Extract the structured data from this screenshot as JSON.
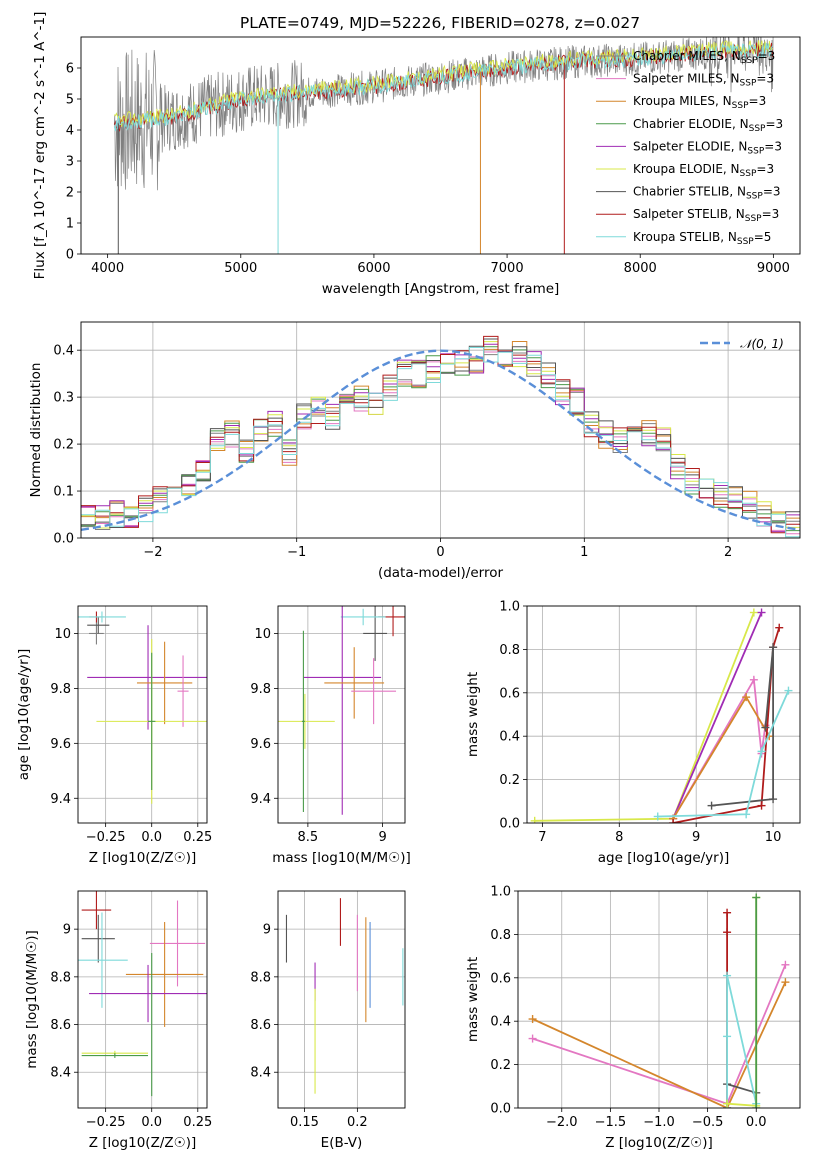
{
  "title": "PLATE=0749, MJD=52226, FIBERID=0278, z=0.027",
  "colors": {
    "chabrier_miles": "#808080",
    "salpeter_miles": "#e377c2",
    "kroupa_miles": "#d4862c",
    "chabrier_elodie": "#4a9a4a",
    "salpeter_elodie": "#a02cb4",
    "kroupa_elodie": "#d8e84a",
    "chabrier_stelib": "#555555",
    "salpeter_stelib": "#b01c1c",
    "kroupa_stelib": "#7edada",
    "normal": "#5a8fd8",
    "grid": "#b0b0b0"
  },
  "chart_data": [
    {
      "type": "line",
      "id": "spectrum",
      "xlabel": "wavelength [Angstrom, rest frame]",
      "ylabel": "Flux [f_λ 10^-17 erg cm^-2 s^-1 A^-1]",
      "xlim": [
        3800,
        9200
      ],
      "ylim": [
        0,
        7
      ],
      "xticks": [
        4000,
        5000,
        6000,
        7000,
        8000,
        9000
      ],
      "yticks": [
        0,
        1,
        2,
        3,
        4,
        5,
        6
      ],
      "grid": false,
      "legend_position": "top-right",
      "legend": [
        {
          "name": "Chabrier MILES",
          "suffix": "3",
          "color_key": "chabrier_miles"
        },
        {
          "name": "Salpeter MILES",
          "suffix": "3",
          "color_key": "salpeter_miles"
        },
        {
          "name": "Kroupa MILES",
          "suffix": "3",
          "color_key": "kroupa_miles"
        },
        {
          "name": "Chabrier ELODIE",
          "suffix": "3",
          "color_key": "chabrier_elodie"
        },
        {
          "name": "Salpeter ELODIE",
          "suffix": "3",
          "color_key": "salpeter_elodie"
        },
        {
          "name": "Kroupa ELODIE",
          "suffix": "3",
          "color_key": "kroupa_elodie"
        },
        {
          "name": "Chabrier STELIB",
          "suffix": "3",
          "color_key": "chabrier_stelib"
        },
        {
          "name": "Salpeter STELIB",
          "suffix": "3",
          "color_key": "salpeter_stelib"
        },
        {
          "name": "Kroupa STELIB",
          "suffix": "5",
          "color_key": "kroupa_stelib"
        }
      ],
      "data_range": [
        4050,
        9000
      ],
      "continuum": [
        [
          4050,
          4.2
        ],
        [
          4500,
          4.4
        ],
        [
          5000,
          5.0
        ],
        [
          5500,
          5.2
        ],
        [
          6000,
          5.4
        ],
        [
          6500,
          5.7
        ],
        [
          7000,
          6.0
        ],
        [
          7500,
          6.2
        ],
        [
          8000,
          6.3
        ],
        [
          8500,
          6.5
        ],
        [
          9000,
          6.6
        ]
      ]
    },
    {
      "type": "step",
      "id": "residuals",
      "xlabel": "(data-model)/error",
      "ylabel": "Normed distribution",
      "xlim": [
        -2.5,
        2.5
      ],
      "ylim": [
        0,
        0.46
      ],
      "xticks": [
        -2,
        -1,
        0,
        1,
        2
      ],
      "yticks": [
        0.0,
        0.1,
        0.2,
        0.3,
        0.4
      ],
      "grid": true,
      "legend_position": "top-right",
      "legend": [
        "N(0,1)"
      ],
      "bin_width": 0.1,
      "bin_start": -2.5,
      "base_hist": [
        0.04,
        0.04,
        0.05,
        0.05,
        0.06,
        0.08,
        0.09,
        0.11,
        0.15,
        0.21,
        0.22,
        0.19,
        0.23,
        0.24,
        0.18,
        0.26,
        0.27,
        0.26,
        0.28,
        0.3,
        0.29,
        0.32,
        0.35,
        0.35,
        0.36,
        0.37,
        0.37,
        0.38,
        0.4,
        0.38,
        0.39,
        0.37,
        0.35,
        0.31,
        0.29,
        0.24,
        0.22,
        0.21,
        0.23,
        0.22,
        0.21,
        0.15,
        0.12,
        0.11,
        0.09,
        0.08,
        0.07,
        0.05,
        0.04,
        0.03
      ]
    },
    {
      "type": "errorbar",
      "id": "age_vs_Z",
      "xlabel": "Z [log10(Z/Z☉)]",
      "ylabel": "age  [log10(age/yr)]",
      "xlim": [
        -0.4,
        0.3
      ],
      "ylim": [
        9.31,
        10.1
      ],
      "xticks": [
        -0.25,
        0.0,
        0.25
      ],
      "yticks": [
        9.4,
        9.6,
        9.8,
        10.0
      ],
      "grid": true,
      "points": [
        {
          "color_key": "chabrier_miles",
          "x": -0.3,
          "y": 10.0,
          "xerr": 0.04,
          "yerr": 0.04
        },
        {
          "color_key": "chabrier_stelib",
          "x": -0.29,
          "y": 10.03,
          "xerr": 0.06,
          "yerr": 0.03
        },
        {
          "color_key": "salpeter_stelib",
          "x": -0.3,
          "y": 10.06,
          "xerr": 0.04,
          "yerr": 0.02
        },
        {
          "color_key": "kroupa_stelib",
          "x": -0.27,
          "y": 10.06,
          "xerr": 0.13,
          "yerr": 0.02
        },
        {
          "color_key": "salpeter_elodie",
          "x": -0.02,
          "y": 9.84,
          "xerr": 0.33,
          "yerr": 0.19
        },
        {
          "color_key": "kroupa_miles",
          "x": 0.07,
          "y": 9.82,
          "xerr": 0.15,
          "yerr": 0.15
        },
        {
          "color_key": "salpeter_miles",
          "x": 0.17,
          "y": 9.79,
          "xerr": 0.03,
          "yerr": 0.13
        },
        {
          "color_key": "kroupa_elodie",
          "x": 0.0,
          "y": 9.68,
          "xerr": 0.3,
          "yerr": 0.3
        },
        {
          "color_key": "chabrier_elodie",
          "x": 0.0,
          "y": 9.68,
          "xerr": 0.02,
          "yerr": 0.25
        }
      ]
    },
    {
      "type": "errorbar",
      "id": "age_vs_mass",
      "xlabel": "mass [log10(M/M☉)]",
      "ylabel": "",
      "xlim": [
        8.3,
        9.15
      ],
      "ylim": [
        9.31,
        10.1
      ],
      "xticks": [
        8.5,
        9.0
      ],
      "yticks": [
        9.4,
        9.6,
        9.8,
        10.0
      ],
      "grid": true,
      "points": [
        {
          "color_key": "chabrier_stelib",
          "x": 8.95,
          "y": 10.0,
          "xerr": 0.08,
          "yerr": 0.1
        },
        {
          "color_key": "salpeter_stelib",
          "x": 9.07,
          "y": 10.06,
          "xerr": 0.1,
          "yerr": 0.07
        },
        {
          "color_key": "kroupa_stelib",
          "x": 8.87,
          "y": 10.06,
          "xerr": 0.15,
          "yerr": 0.03
        },
        {
          "color_key": "salpeter_elodie",
          "x": 8.73,
          "y": 9.84,
          "xerr": 0.26,
          "yerr": 0.5
        },
        {
          "color_key": "kroupa_miles",
          "x": 8.81,
          "y": 9.82,
          "xerr": 0.2,
          "yerr": 0.13
        },
        {
          "color_key": "salpeter_miles",
          "x": 8.94,
          "y": 9.79,
          "xerr": 0.15,
          "yerr": 0.12
        },
        {
          "color_key": "kroupa_elodie",
          "x": 8.48,
          "y": 9.68,
          "xerr": 0.2,
          "yerr": 0.1
        },
        {
          "color_key": "chabrier_elodie",
          "x": 8.47,
          "y": 9.68,
          "xerr": 0.01,
          "yerr": 0.33
        }
      ]
    },
    {
      "type": "line",
      "id": "massweight_vs_age",
      "xlabel": "age  [log10(age/yr)]",
      "ylabel": "mass weight",
      "xlim": [
        6.8,
        10.35
      ],
      "ylim": [
        0,
        1.0
      ],
      "xticks": [
        7,
        8,
        9,
        10
      ],
      "yticks": [
        0.0,
        0.2,
        0.4,
        0.6,
        0.8,
        1.0
      ],
      "grid": true,
      "series": [
        {
          "color_key": "kroupa_elodie",
          "x": [
            6.9,
            8.7,
            9.75
          ],
          "y": [
            0.01,
            0.02,
            0.97
          ]
        },
        {
          "color_key": "salpeter_elodie",
          "x": [
            8.7,
            9.85
          ],
          "y": [
            0.02,
            0.97
          ]
        },
        {
          "color_key": "salpeter_miles",
          "x": [
            8.7,
            9.75,
            9.85,
            9.9
          ],
          "y": [
            0.02,
            0.66,
            0.32,
            0.45
          ]
        },
        {
          "color_key": "kroupa_miles",
          "x": [
            8.7,
            9.65,
            9.95
          ],
          "y": [
            0.02,
            0.58,
            0.4
          ]
        },
        {
          "color_key": "salpeter_stelib",
          "x": [
            8.7,
            9.85,
            10.0,
            10.08
          ],
          "y": [
            0.0,
            0.08,
            0.81,
            0.9
          ]
        },
        {
          "color_key": "chabrier_stelib",
          "x": [
            9.2,
            10.0,
            10.0,
            9.9
          ],
          "y": [
            0.08,
            0.11,
            0.81,
            0.44
          ]
        },
        {
          "color_key": "kroupa_stelib",
          "x": [
            8.5,
            9.65,
            9.85,
            10.2
          ],
          "y": [
            0.03,
            0.04,
            0.33,
            0.61
          ]
        }
      ]
    },
    {
      "type": "errorbar",
      "id": "mass_vs_Z",
      "xlabel": "Z [log10(Z/Z☉)]",
      "ylabel": "mass [log10(M/M☉)]",
      "xlim": [
        -0.4,
        0.3
      ],
      "ylim": [
        8.25,
        9.16
      ],
      "xticks": [
        -0.25,
        0.0,
        0.25
      ],
      "yticks": [
        8.4,
        8.6,
        8.8,
        9.0
      ],
      "grid": true,
      "points": [
        {
          "color_key": "salpeter_stelib",
          "x": -0.3,
          "y": 9.08,
          "xerr": 0.08,
          "yerr": 0.08
        },
        {
          "color_key": "chabrier_stelib",
          "x": -0.29,
          "y": 8.96,
          "xerr": 0.09,
          "yerr": 0.1
        },
        {
          "color_key": "kroupa_stelib",
          "x": -0.27,
          "y": 8.87,
          "xerr": 0.14,
          "yerr": 0.2
        },
        {
          "color_key": "salpeter_miles",
          "x": 0.14,
          "y": 8.94,
          "xerr": 0.15,
          "yerr": 0.18
        },
        {
          "color_key": "kroupa_miles",
          "x": 0.07,
          "y": 8.81,
          "xerr": 0.21,
          "yerr": 0.22
        },
        {
          "color_key": "salpeter_elodie",
          "x": -0.02,
          "y": 8.73,
          "xerr": 0.32,
          "yerr": 0.12
        },
        {
          "color_key": "kroupa_elodie",
          "x": -0.2,
          "y": 8.48,
          "xerr": 0.18,
          "yerr": 0.01
        },
        {
          "color_key": "chabrier_elodie",
          "x": -0.2,
          "y": 8.47,
          "xerr": 0.18,
          "yerr": 0.01
        },
        {
          "color_key": "chabrier_elodie",
          "x": 0.0,
          "y": 8.6,
          "xerr": 0.0,
          "yerr": 0.3
        }
      ]
    },
    {
      "type": "errorbar",
      "id": "mass_vs_ebv",
      "xlabel": "E(B-V)",
      "ylabel": "",
      "xlim": [
        0.125,
        0.245
      ],
      "ylim": [
        8.25,
        9.16
      ],
      "xticks": [
        0.15,
        0.2
      ],
      "yticks": [
        8.4,
        8.6,
        8.8,
        9.0
      ],
      "grid": true,
      "points": [
        {
          "color_key": "chabrier_stelib",
          "x": 0.133,
          "y": 8.96,
          "xerr": 0.0,
          "yerr": 0.1
        },
        {
          "color_key": "salpeter_elodie",
          "x": 0.16,
          "y": 8.78,
          "xerr": 0.0,
          "yerr": 0.08
        },
        {
          "color_key": "kroupa_elodie",
          "x": 0.16,
          "y": 8.53,
          "xerr": 0.0,
          "yerr": 0.22
        },
        {
          "color_key": "salpeter_stelib",
          "x": 0.184,
          "y": 9.03,
          "xerr": 0.0,
          "yerr": 0.1
        },
        {
          "color_key": "salpeter_miles",
          "x": 0.2,
          "y": 8.9,
          "xerr": 0.0,
          "yerr": 0.16
        },
        {
          "color_key": "kroupa_miles",
          "x": 0.208,
          "y": 8.83,
          "xerr": 0.0,
          "yerr": 0.22
        },
        {
          "color_key": "normal",
          "x": 0.212,
          "y": 8.85,
          "xerr": 0.0,
          "yerr": 0.18
        },
        {
          "color_key": "kroupa_stelib",
          "x": 0.243,
          "y": 8.8,
          "xerr": 0.0,
          "yerr": 0.12
        }
      ]
    },
    {
      "type": "line",
      "id": "massweight_vs_Z",
      "xlabel": "Z [log10(Z/Z☉)]",
      "ylabel": "mass weight",
      "xlim": [
        -2.45,
        0.45
      ],
      "ylim": [
        0,
        1.0
      ],
      "xticks": [
        -2.0,
        -1.5,
        -1.0,
        -0.5,
        0.0
      ],
      "yticks": [
        0.0,
        0.2,
        0.4,
        0.6,
        0.8,
        1.0
      ],
      "grid": true,
      "series": [
        {
          "color_key": "salpeter_miles",
          "x": [
            -2.3,
            -0.3,
            0.3
          ],
          "y": [
            0.32,
            0.02,
            0.66
          ]
        },
        {
          "color_key": "kroupa_miles",
          "x": [
            -2.3,
            -0.3,
            0.3
          ],
          "y": [
            0.41,
            0.0,
            0.58
          ]
        },
        {
          "color_key": "chabrier_stelib",
          "x": [
            -0.3,
            0.0
          ],
          "y": [
            0.11,
            0.07
          ]
        },
        {
          "color_key": "salpeter_stelib",
          "x": [
            -0.3,
            -0.3,
            -0.3
          ],
          "y": [
            0.0,
            0.81,
            0.9
          ]
        },
        {
          "color_key": "kroupa_stelib",
          "x": [
            -0.3,
            -0.3,
            -0.3,
            0.0
          ],
          "y": [
            0.0,
            0.33,
            0.61,
            0.02
          ]
        },
        {
          "color_key": "kroupa_elodie",
          "x": [
            -0.3,
            0.0,
            0.0
          ],
          "y": [
            0.02,
            0.01,
            0.97
          ]
        },
        {
          "color_key": "chabrier_elodie",
          "x": [
            0.0,
            0.0
          ],
          "y": [
            0.0,
            0.97
          ]
        }
      ]
    }
  ]
}
